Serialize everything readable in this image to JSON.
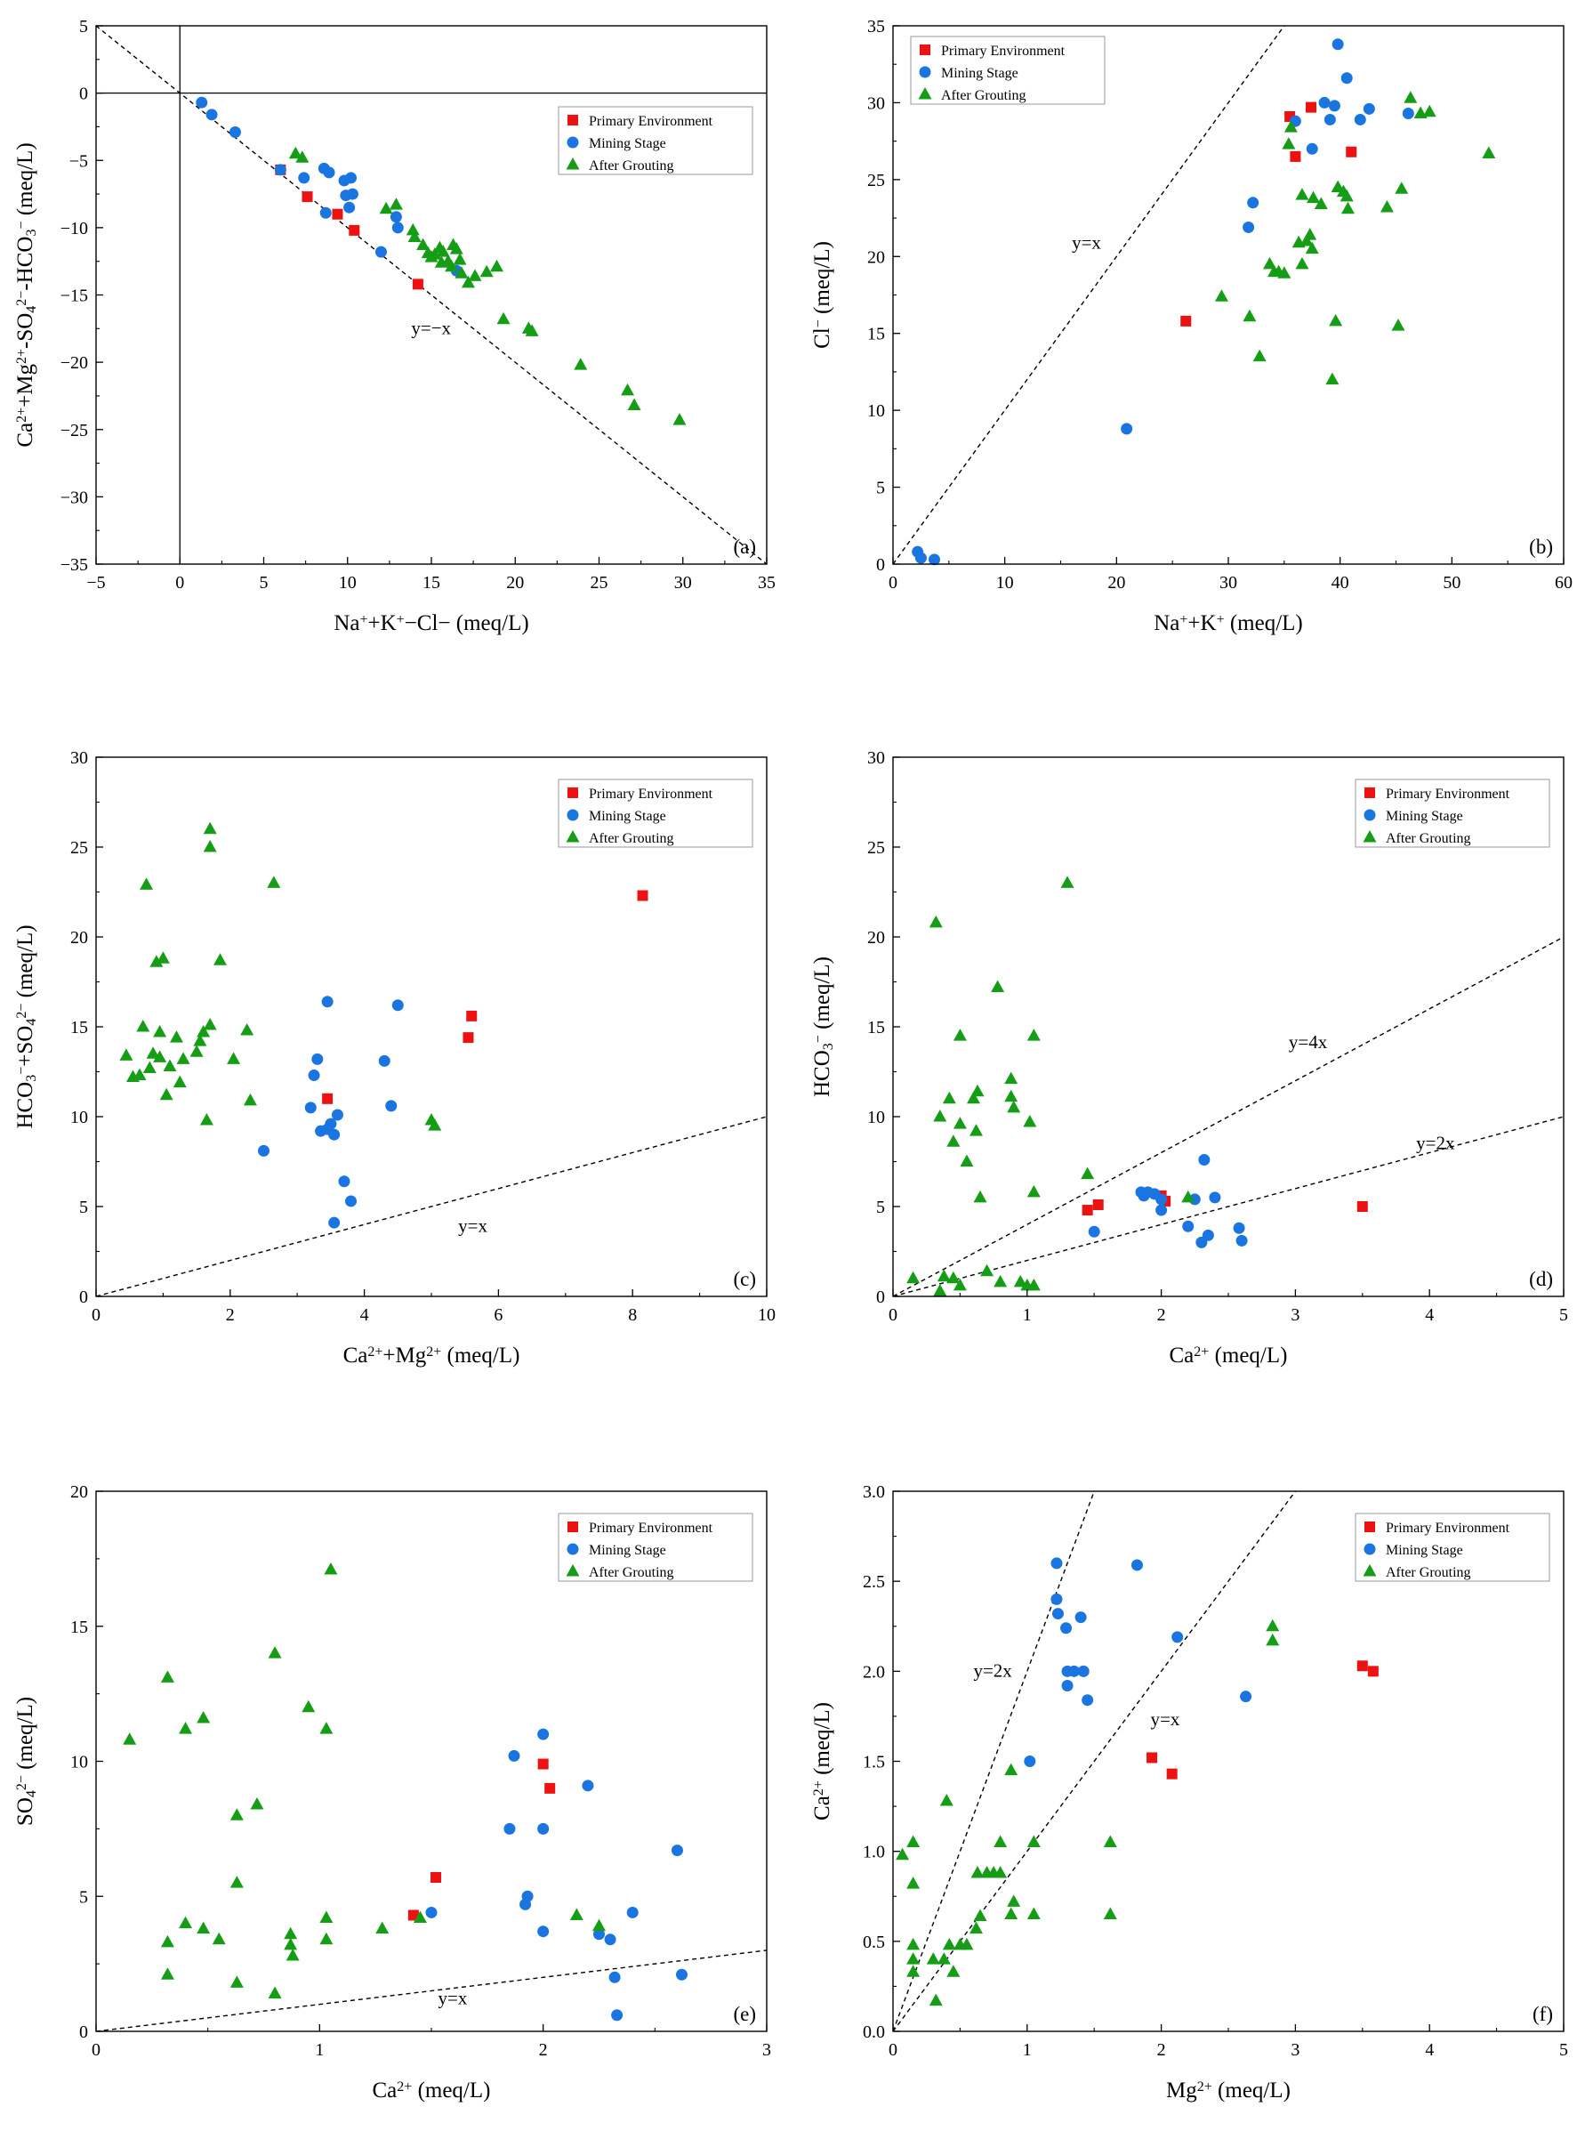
{
  "colors": {
    "primary_environment": "#ee1111",
    "mining_stage": "#1a75e0",
    "after_grouting": "#169d16",
    "axis": "#000000"
  },
  "legend": {
    "primary": "Primary Environment",
    "mining": "Mining Stage",
    "grouting": "After Grouting"
  },
  "chart_data": [
    {
      "id": "a",
      "type": "scatter",
      "panel_label": "(a)",
      "xlabel": [
        "Na",
        "+",
        "+K",
        "+",
        "−Cl− (meq/L)"
      ],
      "ylabel": [
        "Ca",
        "2+",
        "+Mg",
        "2+",
        "-SO",
        "4",
        "2−",
        "-HCO",
        "3",
        "−",
        " (meq/L)"
      ],
      "xlim": [
        -5,
        35
      ],
      "ylim": [
        -35,
        5
      ],
      "xticks": [
        -5,
        0,
        5,
        10,
        15,
        20,
        25,
        30,
        35
      ],
      "yticks": [
        -35,
        -30,
        -25,
        -20,
        -15,
        -10,
        -5,
        0,
        5
      ],
      "zero_lines": true,
      "reflines": [
        {
          "slope": -1,
          "label": "y=−x",
          "label_at": [
            13.8,
            -17.9
          ]
        }
      ],
      "series": [
        {
          "name": "Primary Environment",
          "marker": "square",
          "x": [
            6.0,
            7.6,
            9.4,
            10.4,
            14.2
          ],
          "y": [
            -5.7,
            -7.7,
            -9.0,
            -10.2,
            -14.2
          ]
        },
        {
          "name": "Mining Stage",
          "marker": "circle",
          "x": [
            1.3,
            1.9,
            3.3,
            6.0,
            7.4,
            8.6,
            8.9,
            8.7,
            9.8,
            10.2,
            10.3,
            9.9,
            10.1,
            12.0,
            12.9,
            13.0,
            16.5
          ],
          "y": [
            -0.7,
            -1.6,
            -2.9,
            -5.7,
            -6.3,
            -5.6,
            -5.9,
            -8.9,
            -6.5,
            -6.3,
            -7.5,
            -7.6,
            -8.5,
            -11.8,
            -9.2,
            -10.0,
            -13.2
          ]
        },
        {
          "name": "After Grouting",
          "marker": "triangle",
          "x": [
            6.9,
            7.3,
            12.3,
            12.9,
            13.9,
            14.0,
            14.5,
            14.8,
            15.0,
            15.2,
            15.5,
            15.6,
            15.7,
            16.0,
            16.2,
            16.3,
            16.5,
            16.7,
            16.8,
            17.2,
            17.6,
            18.3,
            18.9,
            19.3,
            20.8,
            21.0,
            23.9,
            26.7,
            27.1,
            29.8
          ],
          "y": [
            -4.5,
            -4.8,
            -8.6,
            -8.3,
            -10.2,
            -10.7,
            -11.3,
            -11.9,
            -12.2,
            -12.0,
            -11.5,
            -12.6,
            -11.8,
            -12.5,
            -12.9,
            -11.3,
            -11.6,
            -12.4,
            -13.4,
            -14.1,
            -13.6,
            -13.3,
            -12.9,
            -16.8,
            -17.5,
            -17.7,
            -20.2,
            -22.1,
            -23.2,
            -24.3
          ]
        }
      ]
    },
    {
      "id": "b",
      "type": "scatter",
      "panel_label": "(b)",
      "xlabel": [
        "Na",
        "+",
        "+K",
        "+",
        " (meq/L)"
      ],
      "ylabel": [
        "Cl",
        "−",
        " (meq/L)"
      ],
      "xlim": [
        0,
        60
      ],
      "ylim": [
        0,
        35
      ],
      "xticks": [
        0,
        10,
        20,
        30,
        40,
        50,
        60
      ],
      "yticks": [
        0,
        5,
        10,
        15,
        20,
        25,
        30,
        35
      ],
      "zero_lines": false,
      "reflines": [
        {
          "slope": 1,
          "label": "y=x",
          "label_at": [
            16.0,
            20.5
          ]
        }
      ],
      "series": [
        {
          "name": "Primary Environment",
          "marker": "square",
          "x": [
            26.2,
            35.5,
            36.0,
            37.4,
            41.0
          ],
          "y": [
            15.8,
            29.1,
            26.5,
            29.7,
            26.8
          ]
        },
        {
          "name": "Mining Stage",
          "marker": "circle",
          "x": [
            2.2,
            2.5,
            3.7,
            20.9,
            31.8,
            32.2,
            36.0,
            37.5,
            38.6,
            39.1,
            39.5,
            39.8,
            40.6,
            41.8,
            42.6,
            46.1
          ],
          "y": [
            0.8,
            0.4,
            0.3,
            8.8,
            21.9,
            23.5,
            28.8,
            27.0,
            30.0,
            28.9,
            29.8,
            33.8,
            31.6,
            28.9,
            29.6,
            29.3
          ]
        },
        {
          "name": "After Grouting",
          "marker": "triangle",
          "x": [
            29.4,
            31.9,
            32.8,
            33.7,
            34.1,
            34.5,
            35.0,
            35.6,
            36.3,
            36.6,
            36.6,
            37.0,
            37.3,
            37.5,
            37.6,
            38.3,
            39.6,
            39.8,
            40.3,
            40.6,
            40.7,
            44.2,
            45.2,
            45.5,
            46.3,
            47.2,
            48.0,
            53.3,
            35.4,
            39.3
          ],
          "y": [
            17.4,
            16.1,
            13.5,
            19.5,
            19.0,
            19.0,
            18.9,
            28.4,
            20.9,
            19.5,
            24.0,
            21.0,
            21.4,
            20.5,
            23.8,
            23.4,
            15.8,
            24.5,
            24.2,
            23.9,
            23.1,
            23.2,
            15.5,
            24.4,
            30.3,
            29.3,
            29.4,
            26.7,
            27.3,
            12.0
          ]
        }
      ]
    },
    {
      "id": "c",
      "type": "scatter",
      "panel_label": "(c)",
      "xlabel": [
        "Ca",
        "2+",
        "+Mg",
        "2+",
        " (meq/L)"
      ],
      "ylabel": [
        "HCO",
        "3",
        "−",
        "+SO",
        "4",
        "2−",
        " (meq/L)"
      ],
      "xlim": [
        0,
        10
      ],
      "ylim": [
        0,
        30
      ],
      "xticks": [
        0,
        2,
        4,
        6,
        8,
        10
      ],
      "yticks": [
        0,
        5,
        10,
        15,
        20,
        25,
        30
      ],
      "zero_lines": false,
      "reflines": [
        {
          "slope": 1,
          "label": "y=x",
          "label_at": [
            5.4,
            3.6
          ]
        }
      ],
      "series": [
        {
          "name": "Primary Environment",
          "marker": "square",
          "x": [
            3.45,
            5.55,
            5.6,
            8.15
          ],
          "y": [
            11.0,
            14.4,
            15.6,
            22.3
          ]
        },
        {
          "name": "Mining Stage",
          "marker": "circle",
          "x": [
            2.5,
            3.2,
            3.25,
            3.3,
            3.35,
            3.45,
            3.45,
            3.5,
            3.55,
            3.55,
            3.6,
            3.7,
            3.8,
            4.3,
            4.4,
            4.5
          ],
          "y": [
            8.1,
            10.5,
            12.3,
            13.2,
            9.2,
            16.4,
            9.3,
            9.6,
            9.0,
            4.1,
            10.1,
            6.4,
            5.3,
            13.1,
            10.6,
            16.2
          ]
        },
        {
          "name": "After Grouting",
          "marker": "triangle",
          "x": [
            0.45,
            0.55,
            0.65,
            0.7,
            0.75,
            0.8,
            0.85,
            0.9,
            0.95,
            0.95,
            1.0,
            1.05,
            1.1,
            1.2,
            1.25,
            1.3,
            1.5,
            1.55,
            1.6,
            1.65,
            1.7,
            1.7,
            1.7,
            1.85,
            2.05,
            2.25,
            2.3,
            2.65,
            5.0,
            5.05
          ],
          "y": [
            13.4,
            12.2,
            12.3,
            15.0,
            22.9,
            12.7,
            13.5,
            18.6,
            14.7,
            13.3,
            18.8,
            11.2,
            12.8,
            14.4,
            11.9,
            13.2,
            13.6,
            14.2,
            14.7,
            9.8,
            15.1,
            25.0,
            26.0,
            18.7,
            13.2,
            14.8,
            10.9,
            23.0,
            9.8,
            9.5
          ]
        }
      ]
    },
    {
      "id": "d",
      "type": "scatter",
      "panel_label": "(d)",
      "xlabel": [
        "Ca",
        "2+",
        " (meq/L)"
      ],
      "ylabel": [
        "HCO",
        "3",
        "−",
        " (meq/L)"
      ],
      "xlim": [
        0,
        5
      ],
      "ylim": [
        0,
        30
      ],
      "xticks": [
        0,
        1,
        2,
        3,
        4,
        5
      ],
      "yticks": [
        0,
        5,
        10,
        15,
        20,
        25,
        30
      ],
      "zero_lines": false,
      "reflines": [
        {
          "slope": 4,
          "label": "y=4x",
          "label_at": [
            2.95,
            13.8
          ]
        },
        {
          "slope": 2,
          "label": "y=2x",
          "label_at": [
            3.9,
            8.2
          ]
        }
      ],
      "series": [
        {
          "name": "Primary Environment",
          "marker": "square",
          "x": [
            1.45,
            1.53,
            2.0,
            2.03,
            3.5
          ],
          "y": [
            4.8,
            5.1,
            5.6,
            5.3,
            5.0
          ]
        },
        {
          "name": "Mining Stage",
          "marker": "circle",
          "x": [
            1.5,
            1.85,
            1.9,
            1.95,
            2.0,
            2.0,
            2.2,
            2.25,
            2.3,
            2.32,
            2.35,
            2.4,
            2.58,
            2.6,
            1.87
          ],
          "y": [
            3.6,
            5.8,
            5.8,
            5.7,
            4.8,
            5.4,
            3.9,
            5.4,
            3.0,
            7.6,
            3.4,
            5.5,
            3.8,
            3.1,
            5.6
          ]
        },
        {
          "name": "After Grouting",
          "marker": "triangle",
          "x": [
            0.15,
            0.32,
            0.35,
            0.35,
            0.42,
            0.45,
            0.45,
            0.5,
            0.5,
            0.5,
            0.55,
            0.6,
            0.62,
            0.63,
            0.65,
            0.7,
            0.78,
            0.8,
            0.88,
            0.88,
            0.9,
            0.95,
            1.0,
            1.02,
            1.05,
            1.05,
            1.05,
            1.3,
            1.45,
            2.2,
            0.38
          ],
          "y": [
            1.0,
            20.8,
            10.0,
            0.3,
            11.0,
            8.6,
            1.0,
            14.5,
            9.6,
            0.6,
            7.5,
            11.0,
            9.2,
            11.4,
            5.5,
            1.4,
            17.2,
            0.8,
            12.1,
            11.1,
            10.5,
            0.8,
            0.6,
            9.7,
            14.5,
            5.8,
            0.6,
            23.0,
            6.8,
            5.5,
            1.1
          ]
        }
      ]
    },
    {
      "id": "e",
      "type": "scatter",
      "panel_label": "(e)",
      "xlabel": [
        "Ca",
        "2+",
        " (meq/L)"
      ],
      "ylabel": [
        "SO",
        "4",
        "2−",
        " (meq/L)"
      ],
      "xlim": [
        0,
        3
      ],
      "ylim": [
        0,
        20
      ],
      "xticks": [
        0,
        1,
        2,
        3
      ],
      "yticks": [
        0,
        5,
        10,
        15,
        20
      ],
      "zero_lines": false,
      "reflines": [
        {
          "slope": 1,
          "label": "y=x",
          "label_at": [
            1.53,
            1.0
          ]
        }
      ],
      "series": [
        {
          "name": "Primary Environment",
          "marker": "square",
          "x": [
            1.42,
            1.52,
            2.0,
            2.03
          ],
          "y": [
            4.3,
            5.7,
            9.9,
            9.0
          ]
        },
        {
          "name": "Mining Stage",
          "marker": "circle",
          "x": [
            1.5,
            1.85,
            1.87,
            1.92,
            1.93,
            2.0,
            2.0,
            2.0,
            2.2,
            2.25,
            2.3,
            2.32,
            2.33,
            2.4,
            2.6,
            2.62
          ],
          "y": [
            4.4,
            7.5,
            10.2,
            4.7,
            5.0,
            7.5,
            3.7,
            11.0,
            9.1,
            3.6,
            3.4,
            2.0,
            0.6,
            4.4,
            6.7,
            2.1
          ]
        },
        {
          "name": "After Grouting",
          "marker": "triangle",
          "x": [
            0.15,
            0.32,
            0.32,
            0.32,
            0.4,
            0.4,
            0.48,
            0.48,
            0.55,
            0.63,
            0.63,
            0.63,
            0.72,
            0.8,
            0.8,
            0.87,
            0.87,
            0.88,
            0.95,
            1.03,
            1.03,
            1.05,
            1.03,
            1.28,
            1.45,
            2.15,
            2.25
          ],
          "y": [
            10.8,
            13.1,
            3.3,
            2.1,
            11.2,
            4.0,
            11.6,
            3.8,
            3.4,
            8.0,
            5.5,
            1.8,
            8.4,
            14.0,
            1.4,
            3.6,
            3.2,
            2.8,
            12.0,
            11.2,
            4.2,
            17.1,
            3.4,
            3.8,
            4.2,
            4.3,
            3.9
          ]
        }
      ]
    },
    {
      "id": "f",
      "type": "scatter",
      "panel_label": "(f)",
      "xlabel": [
        "Mg",
        "2+",
        " (meq/L)"
      ],
      "ylabel": [
        "Ca",
        "2+",
        " (meq/L)"
      ],
      "xlim": [
        0,
        5
      ],
      "ylim": [
        0,
        3
      ],
      "xticks": [
        0,
        1,
        2,
        3,
        4,
        5
      ],
      "yticks": [
        0.0,
        0.5,
        1.0,
        1.5,
        2.0,
        2.5,
        3.0
      ],
      "ytick_decimals": 1,
      "zero_lines": false,
      "reflines": [
        {
          "slope": 2,
          "label": "y=2x",
          "label_at": [
            0.6,
            1.97
          ]
        },
        {
          "slope": 1,
          "label": "y=x",
          "label_at": [
            1.92,
            1.7
          ]
        }
      ],
      "series": [
        {
          "name": "Primary Environment",
          "marker": "square",
          "x": [
            1.93,
            2.08,
            3.5,
            3.58
          ],
          "y": [
            1.52,
            1.43,
            2.03,
            2.0
          ]
        },
        {
          "name": "Mining Stage",
          "marker": "circle",
          "x": [
            1.02,
            1.22,
            1.22,
            1.23,
            1.29,
            1.3,
            1.3,
            1.35,
            1.4,
            1.42,
            1.42,
            1.45,
            1.82,
            2.12,
            2.63
          ],
          "y": [
            1.5,
            2.6,
            2.4,
            2.32,
            2.24,
            2.0,
            1.92,
            2.0,
            2.3,
            2.0,
            2.0,
            1.84,
            2.59,
            2.19,
            1.86
          ]
        },
        {
          "name": "After Grouting",
          "marker": "triangle",
          "x": [
            0.07,
            0.15,
            0.15,
            0.15,
            0.15,
            0.15,
            0.3,
            0.32,
            0.38,
            0.4,
            0.42,
            0.45,
            0.5,
            0.55,
            0.62,
            0.63,
            0.65,
            0.7,
            0.75,
            0.8,
            0.8,
            0.88,
            0.88,
            0.9,
            1.05,
            1.05,
            1.62,
            1.62,
            2.83,
            2.83
          ],
          "y": [
            0.98,
            1.05,
            0.82,
            0.48,
            0.4,
            0.33,
            0.4,
            0.17,
            0.4,
            1.28,
            0.48,
            0.33,
            0.48,
            0.48,
            0.57,
            0.88,
            0.64,
            0.88,
            0.88,
            1.05,
            0.88,
            1.45,
            0.65,
            0.72,
            1.05,
            0.65,
            1.05,
            0.65,
            2.25,
            2.17
          ]
        }
      ]
    }
  ]
}
